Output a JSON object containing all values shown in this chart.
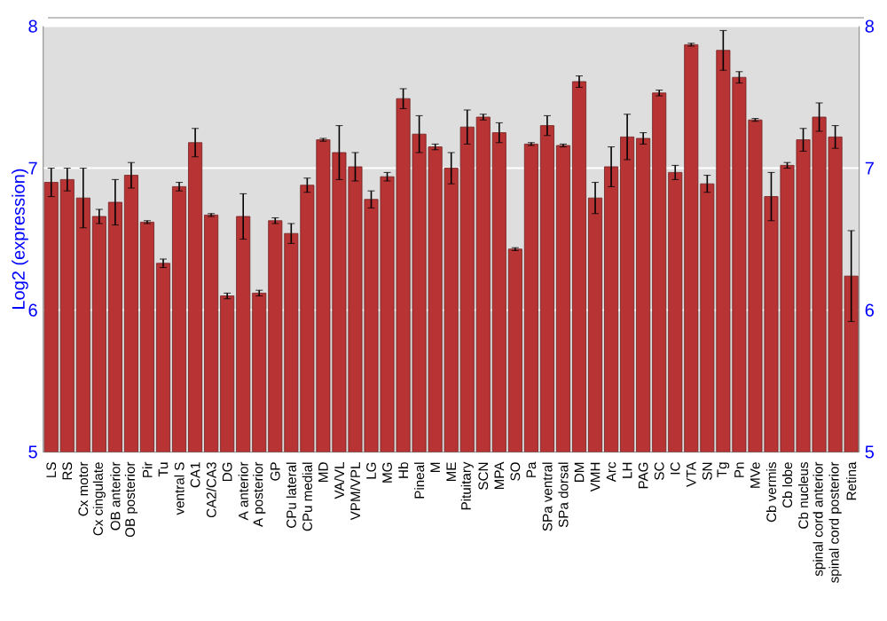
{
  "chart_data": {
    "type": "bar",
    "ylabel": "Log2 (expression)",
    "categories": [
      "LS",
      "RS",
      "Cx motor",
      "Cx cingulate",
      "OB anterior",
      "OB posterior",
      "Pir",
      "Tu",
      "ventral S",
      "CA1",
      "CA2/CA3",
      "DG",
      "A anterior",
      "A posterior",
      "GP",
      "CPu lateral",
      "CPu medial",
      "MD",
      "VA/VL",
      "VPM/VPL",
      "LG",
      "MG",
      "Hb",
      "Pineal",
      "M",
      "ME",
      "Pituitary",
      "SCN",
      "MPA",
      "SO",
      "Pa",
      "SPa ventral",
      "SPa dorsal",
      "DM",
      "VMH",
      "Arc",
      "LH",
      "PAG",
      "SC",
      "IC",
      "VTA",
      "SN",
      "Tg",
      "Pn",
      "MVe",
      "Cb vermis",
      "Cb lobe",
      "Cb nucleus",
      "spinal cord anterior",
      "spinal cord posterior",
      "Retina"
    ],
    "values": [
      6.9,
      6.92,
      6.79,
      6.66,
      6.76,
      6.95,
      6.62,
      6.33,
      6.87,
      7.18,
      6.67,
      6.1,
      6.66,
      6.12,
      6.63,
      6.54,
      6.88,
      7.2,
      7.11,
      7.01,
      6.78,
      6.94,
      7.49,
      7.24,
      7.15,
      7.0,
      7.29,
      7.36,
      7.25,
      6.43,
      7.17,
      7.3,
      7.16,
      7.61,
      6.79,
      7.01,
      7.22,
      7.21,
      7.53,
      6.97,
      7.87,
      6.89,
      7.83,
      7.64,
      7.34,
      6.8,
      7.02,
      7.2,
      7.36,
      7.22,
      6.24
    ],
    "errors": [
      0.1,
      0.08,
      0.21,
      0.05,
      0.16,
      0.09,
      0.01,
      0.03,
      0.03,
      0.1,
      0.01,
      0.02,
      0.16,
      0.02,
      0.02,
      0.07,
      0.05,
      0.01,
      0.19,
      0.1,
      0.06,
      0.03,
      0.07,
      0.13,
      0.02,
      0.11,
      0.12,
      0.02,
      0.07,
      0.01,
      0.01,
      0.07,
      0.01,
      0.04,
      0.11,
      0.14,
      0.16,
      0.04,
      0.02,
      0.05,
      0.01,
      0.06,
      0.14,
      0.04,
      0.01,
      0.17,
      0.02,
      0.08,
      0.1,
      0.08,
      0.32
    ],
    "color": "#b83434",
    "ylim": [
      5,
      8
    ],
    "yticks": [
      5,
      6,
      7,
      8
    ],
    "y2lim": [
      5,
      8
    ],
    "y2ticks": [
      5,
      6,
      7,
      8
    ],
    "grid": "y"
  }
}
